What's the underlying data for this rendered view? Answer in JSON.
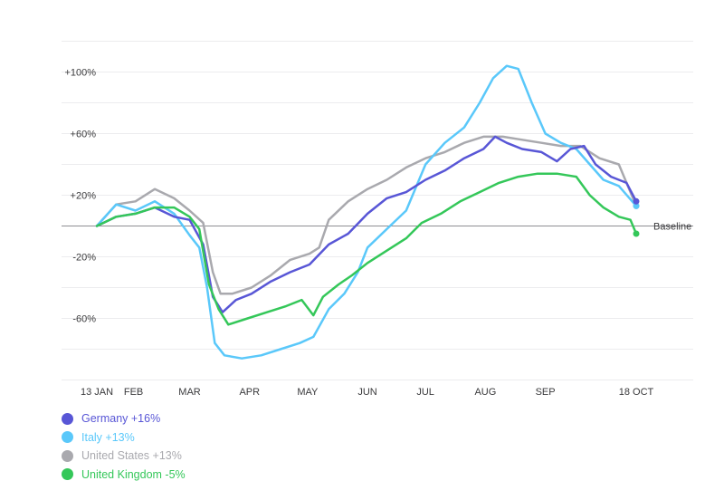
{
  "chart_data": {
    "type": "line",
    "y_ticks": [
      {
        "value": 100,
        "label": "+100%"
      },
      {
        "value": 60,
        "label": "+60%"
      },
      {
        "value": 20,
        "label": "+20%"
      },
      {
        "value": -20,
        "label": "-20%"
      },
      {
        "value": -60,
        "label": "-60%"
      }
    ],
    "ylim": [
      -100,
      122
    ],
    "x_ticks": [
      {
        "label": "13 JAN",
        "day": 0
      },
      {
        "label": "FEB",
        "day": 19
      },
      {
        "label": "MAR",
        "day": 48
      },
      {
        "label": "APR",
        "day": 79
      },
      {
        "label": "MAY",
        "day": 109
      },
      {
        "label": "JUN",
        "day": 140
      },
      {
        "label": "JUL",
        "day": 170
      },
      {
        "label": "AUG",
        "day": 201
      },
      {
        "label": "SEP",
        "day": 232
      },
      {
        "label": "18 OCT",
        "day": 279
      }
    ],
    "xlim": [
      0,
      279
    ],
    "baseline_label": "Baseline",
    "grid": true,
    "legend_position": "bottom-left",
    "series": [
      {
        "name": "Germany",
        "change_label": "+16%",
        "color": "#5856D6",
        "points": [
          [
            0,
            0
          ],
          [
            10,
            6
          ],
          [
            20,
            8
          ],
          [
            30,
            12
          ],
          [
            40,
            6
          ],
          [
            48,
            4
          ],
          [
            55,
            -12
          ],
          [
            60,
            -46
          ],
          [
            65,
            -56
          ],
          [
            72,
            -48
          ],
          [
            80,
            -44
          ],
          [
            90,
            -36
          ],
          [
            100,
            -30
          ],
          [
            110,
            -25
          ],
          [
            120,
            -12
          ],
          [
            130,
            -5
          ],
          [
            140,
            8
          ],
          [
            150,
            18
          ],
          [
            160,
            22
          ],
          [
            170,
            30
          ],
          [
            180,
            36
          ],
          [
            190,
            44
          ],
          [
            200,
            50
          ],
          [
            206,
            58
          ],
          [
            212,
            54
          ],
          [
            220,
            50
          ],
          [
            230,
            48
          ],
          [
            238,
            42
          ],
          [
            245,
            50
          ],
          [
            252,
            52
          ],
          [
            258,
            40
          ],
          [
            266,
            32
          ],
          [
            274,
            28
          ],
          [
            279,
            16
          ]
        ]
      },
      {
        "name": "Italy",
        "change_label": "+13%",
        "color": "#5AC8FA",
        "points": [
          [
            0,
            0
          ],
          [
            10,
            14
          ],
          [
            20,
            10
          ],
          [
            30,
            16
          ],
          [
            40,
            8
          ],
          [
            48,
            -6
          ],
          [
            53,
            -14
          ],
          [
            57,
            -40
          ],
          [
            61,
            -76
          ],
          [
            66,
            -84
          ],
          [
            75,
            -86
          ],
          [
            85,
            -84
          ],
          [
            95,
            -80
          ],
          [
            105,
            -76
          ],
          [
            112,
            -72
          ],
          [
            120,
            -54
          ],
          [
            128,
            -44
          ],
          [
            135,
            -30
          ],
          [
            140,
            -14
          ],
          [
            150,
            -2
          ],
          [
            160,
            10
          ],
          [
            170,
            40
          ],
          [
            180,
            54
          ],
          [
            190,
            64
          ],
          [
            198,
            80
          ],
          [
            205,
            96
          ],
          [
            212,
            104
          ],
          [
            218,
            102
          ],
          [
            225,
            80
          ],
          [
            232,
            60
          ],
          [
            240,
            54
          ],
          [
            248,
            50
          ],
          [
            255,
            40
          ],
          [
            262,
            30
          ],
          [
            270,
            26
          ],
          [
            279,
            13
          ]
        ]
      },
      {
        "name": "United States",
        "change_label": "+13%",
        "color": "#A9A9AE",
        "points": [
          [
            0,
            0
          ],
          [
            10,
            14
          ],
          [
            20,
            16
          ],
          [
            30,
            24
          ],
          [
            40,
            18
          ],
          [
            48,
            10
          ],
          [
            55,
            2
          ],
          [
            60,
            -30
          ],
          [
            64,
            -44
          ],
          [
            70,
            -44
          ],
          [
            80,
            -40
          ],
          [
            90,
            -32
          ],
          [
            100,
            -22
          ],
          [
            110,
            -18
          ],
          [
            115,
            -14
          ],
          [
            120,
            4
          ],
          [
            130,
            16
          ],
          [
            140,
            24
          ],
          [
            150,
            30
          ],
          [
            160,
            38
          ],
          [
            170,
            44
          ],
          [
            180,
            48
          ],
          [
            190,
            54
          ],
          [
            200,
            58
          ],
          [
            210,
            58
          ],
          [
            220,
            56
          ],
          [
            230,
            54
          ],
          [
            240,
            52
          ],
          [
            250,
            52
          ],
          [
            260,
            44
          ],
          [
            270,
            40
          ],
          [
            279,
            13
          ]
        ]
      },
      {
        "name": "United Kingdom",
        "change_label": "-5%",
        "color": "#34C759",
        "points": [
          [
            0,
            0
          ],
          [
            10,
            6
          ],
          [
            20,
            8
          ],
          [
            30,
            12
          ],
          [
            40,
            12
          ],
          [
            48,
            6
          ],
          [
            53,
            -2
          ],
          [
            58,
            -38
          ],
          [
            63,
            -54
          ],
          [
            68,
            -64
          ],
          [
            78,
            -60
          ],
          [
            88,
            -56
          ],
          [
            98,
            -52
          ],
          [
            106,
            -48
          ],
          [
            112,
            -58
          ],
          [
            117,
            -46
          ],
          [
            125,
            -38
          ],
          [
            132,
            -32
          ],
          [
            140,
            -24
          ],
          [
            150,
            -16
          ],
          [
            160,
            -8
          ],
          [
            168,
            2
          ],
          [
            178,
            8
          ],
          [
            188,
            16
          ],
          [
            198,
            22
          ],
          [
            208,
            28
          ],
          [
            218,
            32
          ],
          [
            228,
            34
          ],
          [
            238,
            34
          ],
          [
            248,
            32
          ],
          [
            255,
            20
          ],
          [
            262,
            12
          ],
          [
            270,
            6
          ],
          [
            276,
            4
          ],
          [
            279,
            -5
          ]
        ]
      }
    ]
  }
}
